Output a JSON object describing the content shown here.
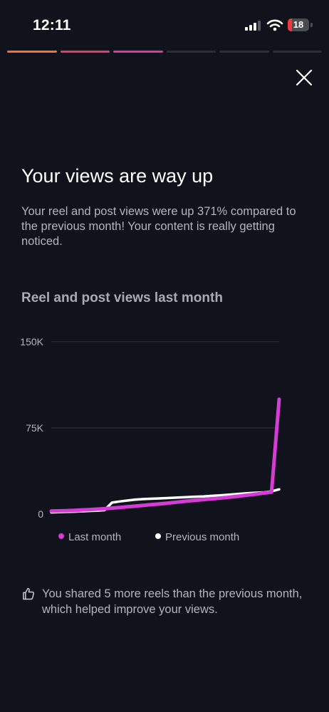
{
  "status_bar": {
    "time": "12:11",
    "battery_level": "18",
    "battery_color": "#ef3a3d"
  },
  "story_progress": {
    "segments": 6,
    "colors": [
      "#f0723a",
      "#e63a6a",
      "#d93a9c",
      "#2b2e36",
      "#2b2e36",
      "#2b2e36"
    ]
  },
  "close_icon": "close-icon",
  "headline": "Your views are way up",
  "description": "Your reel and post views were up 371% compared to the previous month! Your content is really getting noticed.",
  "chart_title": "Reel and post views last month",
  "chart_data": {
    "type": "line",
    "title": "Reel and post views last month",
    "xlabel": "",
    "ylabel": "",
    "ylim": [
      0,
      150000
    ],
    "y_ticks": [
      0,
      75000,
      150000
    ],
    "y_tick_labels": [
      "0",
      "75K",
      "150K"
    ],
    "grid": true,
    "legend": "bottom",
    "series": [
      {
        "name": "Last month",
        "color": "#d63bd6",
        "x": [
          0,
          1,
          2,
          3,
          4,
          5,
          6,
          7,
          8,
          9,
          10,
          11,
          12,
          13,
          14,
          15,
          16,
          17,
          18,
          19,
          20,
          21,
          22,
          23,
          24,
          25,
          26,
          27,
          28,
          29,
          30
        ],
        "values": [
          2600,
          2800,
          3000,
          3300,
          3600,
          3900,
          4300,
          4700,
          5200,
          5700,
          6300,
          6900,
          7500,
          8100,
          8700,
          9300,
          10000,
          10700,
          11400,
          12000,
          12600,
          13200,
          13800,
          14400,
          15100,
          15800,
          16600,
          17400,
          18300,
          19000,
          100000
        ]
      },
      {
        "name": "Previous month",
        "color": "#ffffff",
        "x": [
          0,
          1,
          2,
          3,
          4,
          5,
          6,
          7,
          8,
          9,
          10,
          11,
          12,
          13,
          14,
          15,
          16,
          17,
          18,
          19,
          20,
          21,
          22,
          23,
          24,
          25,
          26,
          27,
          28,
          29,
          30
        ],
        "values": [
          1500,
          1700,
          1900,
          2100,
          2400,
          2700,
          3000,
          3400,
          10000,
          11000,
          11800,
          12500,
          13000,
          13300,
          13600,
          13900,
          14200,
          14500,
          14800,
          15100,
          15400,
          15800,
          16200,
          16700,
          17200,
          17700,
          18200,
          18600,
          18900,
          19800,
          21500
        ]
      }
    ]
  },
  "insight": {
    "icon": "thumbs-up-icon",
    "text": "You shared 5 more reels than the previous month, which helped improve your views."
  }
}
